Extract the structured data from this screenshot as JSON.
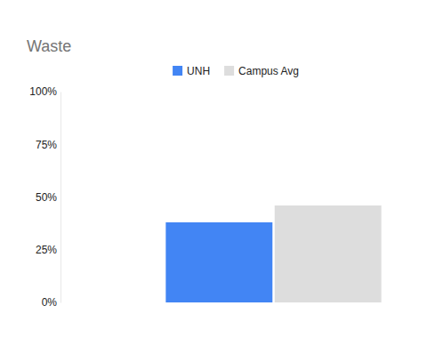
{
  "chart_data": {
    "type": "bar",
    "title": "Waste",
    "categories": [
      null
    ],
    "series": [
      {
        "name": "UNH",
        "color": "#4285f4",
        "values": [
          38
        ]
      },
      {
        "name": "Campus Avg",
        "color": "#dddddd",
        "values": [
          46
        ]
      }
    ],
    "ylim": [
      0,
      100
    ],
    "yticks": [
      {
        "value": 0,
        "label": "0%"
      },
      {
        "value": 25,
        "label": "25%"
      },
      {
        "value": 50,
        "label": "50%"
      },
      {
        "value": 75,
        "label": "75%"
      },
      {
        "value": 100,
        "label": "100%"
      }
    ],
    "grid": false,
    "legend": "top"
  }
}
